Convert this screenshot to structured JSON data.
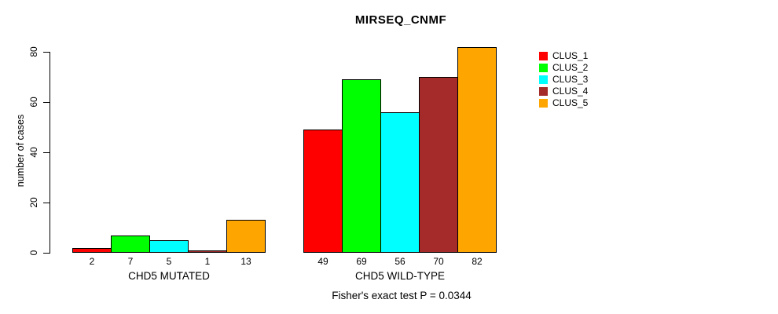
{
  "chart_data": {
    "type": "bar",
    "title": "MIRSEQ_CNMF",
    "ylabel": "number of cases",
    "xlabel": "",
    "ylim": [
      0,
      80
    ],
    "yticks": [
      0,
      20,
      40,
      60,
      80
    ],
    "grid": false,
    "legend_position": "top-right",
    "value_labels_shown": true,
    "annotation": "Fisher's exact test P = 0.0344",
    "categories": [
      "CHD5 MUTATED",
      "CHD5 WILD-TYPE"
    ],
    "series": [
      {
        "name": "CLUS_1",
        "color": "#FF0000",
        "values": [
          2,
          49
        ]
      },
      {
        "name": "CLUS_2",
        "color": "#00FF00",
        "values": [
          7,
          69
        ]
      },
      {
        "name": "CLUS_3",
        "color": "#00FFFF",
        "values": [
          5,
          56
        ]
      },
      {
        "name": "CLUS_4",
        "color": "#A52A2A",
        "values": [
          1,
          70
        ]
      },
      {
        "name": "CLUS_5",
        "color": "#FFA500",
        "values": [
          13,
          82
        ]
      }
    ],
    "colors": {
      "background": "#FFFFFF",
      "axis": "#000000",
      "text": "#000000",
      "bar_border": "#000000"
    }
  }
}
